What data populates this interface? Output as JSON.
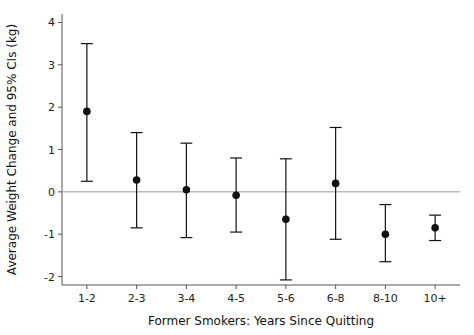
{
  "chart_data": {
    "type": "errorbar",
    "categories": [
      "1-2",
      "2-3",
      "3-4",
      "4-5",
      "5-6",
      "6-8",
      "8-10",
      "10+"
    ],
    "values": [
      1.9,
      0.28,
      0.05,
      -0.08,
      -0.65,
      0.2,
      -1.0,
      -0.85
    ],
    "ci_upper": [
      3.5,
      1.4,
      1.15,
      0.8,
      0.78,
      1.52,
      -0.3,
      -0.55
    ],
    "ci_lower": [
      0.25,
      -0.85,
      -1.08,
      -0.95,
      -2.08,
      -1.12,
      -1.65,
      -1.15
    ],
    "reference_line": 0,
    "xlabel": "Former Smokers: Years Since Quitting",
    "ylabel": "Average Weight Change and 95% CIs (kg)",
    "ylim": [
      -2.2,
      4.2
    ],
    "yticks": [
      -2,
      -1,
      0,
      1,
      2,
      3,
      4
    ],
    "color": "#111111",
    "grid": false
  }
}
